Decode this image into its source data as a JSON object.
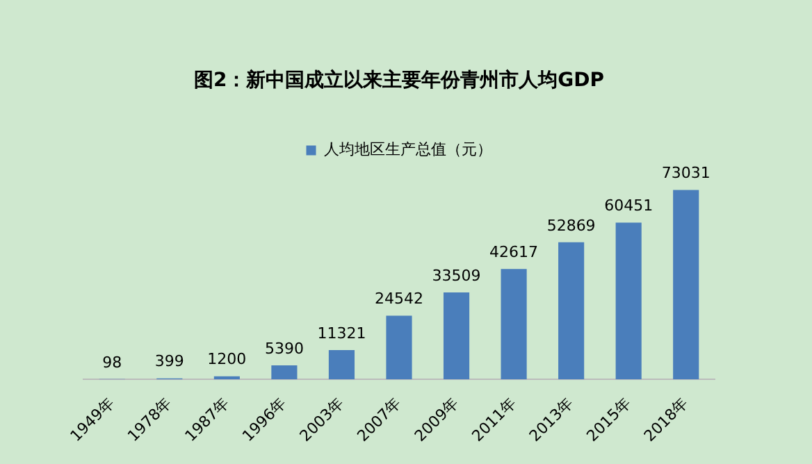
{
  "chart_data": {
    "type": "bar",
    "title": "图2：新中国成立以来主要年份青州市人均GDP",
    "categories": [
      "1949年",
      "1978年",
      "1987年",
      "1996年",
      "2003年",
      "2007年",
      "2009年",
      "2011年",
      "2013年",
      "2015年",
      "2018年"
    ],
    "series": [
      {
        "name": "人均地区生产总值（元）",
        "color": "#4a7ebb",
        "values": [
          98,
          399,
          1200,
          5390,
          11321,
          24542,
          33509,
          42617,
          52869,
          60451,
          73031
        ]
      }
    ],
    "data_labels": true,
    "legend": "top",
    "grid": false
  }
}
